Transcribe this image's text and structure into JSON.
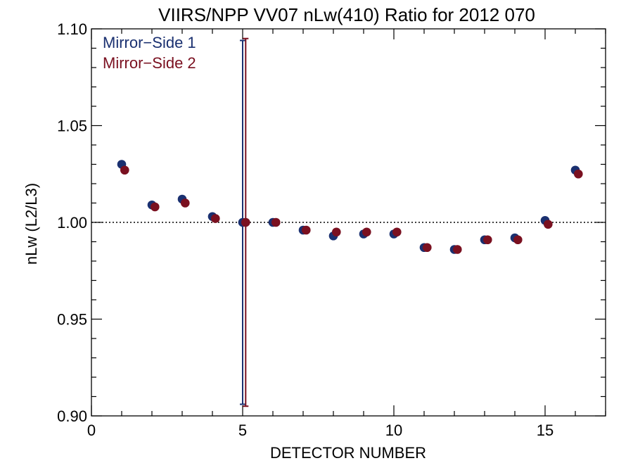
{
  "chart_data": {
    "type": "scatter",
    "title": "VIIRS/NPP VV07 nLw(410) Ratio for 2012 070",
    "xlabel": "DETECTOR NUMBER",
    "ylabel": "nLw (L2/L3)",
    "xlim": [
      0,
      17
    ],
    "ylim": [
      0.9,
      1.1
    ],
    "x_ticks": [
      0,
      5,
      10,
      15
    ],
    "x_tick_labels": [
      "0",
      "5",
      "10",
      "15"
    ],
    "y_ticks": [
      0.9,
      0.95,
      1.0,
      1.05,
      1.1
    ],
    "y_tick_labels": [
      "0.90",
      "0.95",
      "1.00",
      "1.05",
      "1.10"
    ],
    "reference_line": {
      "y": 1.0,
      "style": "dotted"
    },
    "legend_position": "top-left",
    "series": [
      {
        "name": "Mirror−Side 1",
        "color": "#1a3070",
        "x_offset": 0,
        "x": [
          1,
          2,
          3,
          4,
          5,
          6,
          7,
          8,
          9,
          10,
          11,
          12,
          13,
          14,
          15,
          16
        ],
        "y": [
          1.03,
          1.009,
          1.012,
          1.003,
          1.0,
          1.0,
          0.996,
          0.993,
          0.994,
          0.994,
          0.987,
          0.986,
          0.991,
          0.992,
          1.001,
          1.027
        ],
        "error_bar": {
          "x": 5,
          "y_low": 0.906,
          "y_high": 1.094
        }
      },
      {
        "name": "Mirror−Side 2",
        "color": "#7a1020",
        "x_offset": 0.1,
        "x": [
          1,
          2,
          3,
          4,
          5,
          6,
          7,
          8,
          9,
          10,
          11,
          12,
          13,
          14,
          15,
          16
        ],
        "y": [
          1.027,
          1.008,
          1.01,
          1.002,
          1.0,
          1.0,
          0.996,
          0.995,
          0.995,
          0.995,
          0.987,
          0.986,
          0.991,
          0.991,
          0.999,
          1.025
        ],
        "error_bar": {
          "x": 5,
          "y_low": 0.905,
          "y_high": 1.095
        }
      }
    ]
  }
}
